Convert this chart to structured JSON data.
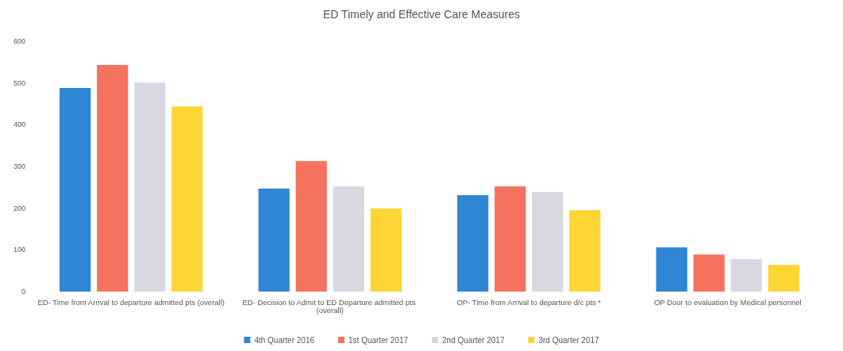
{
  "chart_data": {
    "type": "bar",
    "title": "ED Timely and Effective Care Measures",
    "categories": [
      "ED- Time from Arrival to departure admitted pts (overall)",
      "ED- Decision to Admit to ED Departure admitted pts (overall)",
      "OP- Time from Arrival to departure d/c pts *",
      "OP Door to evaluation by Medical personnel"
    ],
    "series": [
      {
        "name": "4th Quarter 2016",
        "color": "#2e86d4",
        "values": [
          488,
          247,
          231,
          106
        ]
      },
      {
        "name": "1st Quarter 2017",
        "color": "#f4725e",
        "values": [
          543,
          313,
          252,
          89
        ]
      },
      {
        "name": "2nd Quarter 2017",
        "color": "#d9d8e2",
        "values": [
          501,
          252,
          239,
          78
        ]
      },
      {
        "name": "3rd Quarter 2017",
        "color": "#fdd535",
        "values": [
          444,
          199,
          195,
          64
        ]
      }
    ],
    "ylim": [
      0,
      600
    ],
    "yticks": [
      0,
      100,
      200,
      300,
      400,
      500,
      600
    ],
    "grid": false,
    "legend": "bottom"
  }
}
